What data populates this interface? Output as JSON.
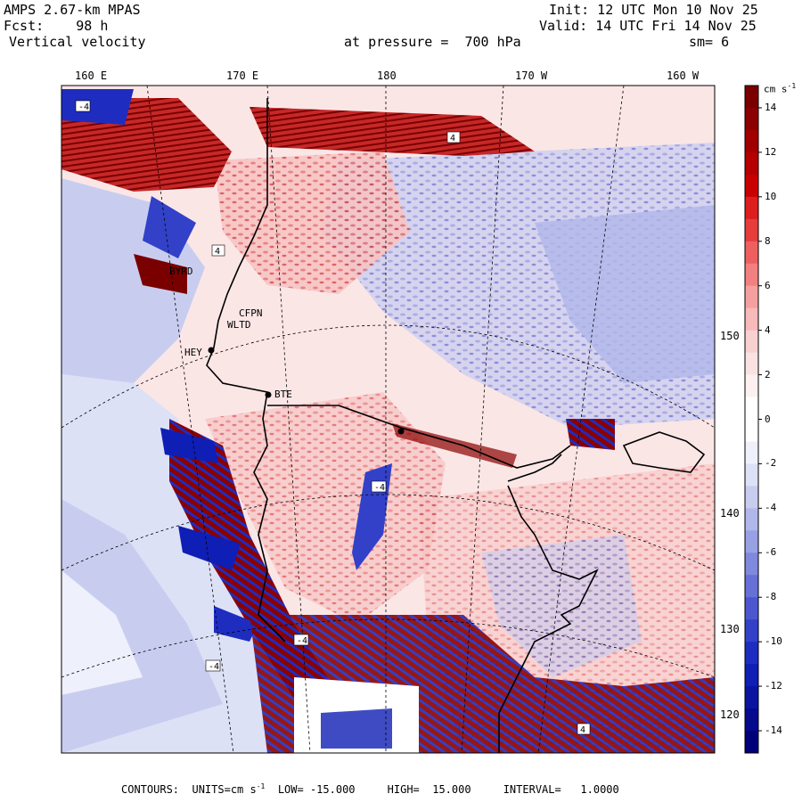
{
  "header": {
    "model": "AMPS 2.67-km MPAS",
    "forecast_label": "Fcst:",
    "forecast_hours": "98 h",
    "field": "Vertical velocity",
    "level_text": "at pressure =  700 hPa",
    "init": "Init: 12 UTC Mon 10 Nov 25",
    "valid": "Valid: 14 UTC Fri 14 Nov 25",
    "smoothing": "sm= 6"
  },
  "map": {
    "longitude_labels": [
      "160 E",
      "170 E",
      "180",
      "170 W",
      "160 W"
    ],
    "latitude_labels": [
      "150 W",
      "140 W",
      "130 W",
      "120 W"
    ],
    "station_labels": [
      "BYRD",
      "CFPN",
      "WLTD",
      "BTE",
      "HEY"
    ],
    "contour_highlight_values": [
      "-4",
      "4",
      "-4",
      "4",
      "-4",
      "4",
      "-4"
    ]
  },
  "colorbar": {
    "units_label": "cm s",
    "units_exp": "-1",
    "tick_labels": [
      "14",
      "12",
      "10",
      "8",
      "6",
      "4",
      "2",
      "0",
      "-2",
      "-4",
      "-6",
      "-8",
      "-10",
      "-12",
      "-14"
    ],
    "colors": [
      "#7a0000",
      "#8b0000",
      "#a00000",
      "#b40000",
      "#c80000",
      "#dc1e1e",
      "#e63c3c",
      "#ee6060",
      "#f28080",
      "#f5a0a0",
      "#f7b9b9",
      "#f9d0d0",
      "#fbe2e2",
      "#fdf0f0",
      "#ffffff",
      "#ffffff",
      "#eef0fb",
      "#dde1f6",
      "#c8cdf0",
      "#b0b7ea",
      "#98a1e4",
      "#7f89dd",
      "#6670d6",
      "#4c57cf",
      "#3241c8",
      "#1e2dc0",
      "#0f1eb4",
      "#0a14a0",
      "#050a8c",
      "#000078"
    ]
  },
  "footer": {
    "contours_label": "CONTOURS:",
    "units_text": "UNITS=cm s",
    "units_exp": "-1",
    "low_text": "LOW= -15.000",
    "high_text": "HIGH=  15.000",
    "interval_text": "INTERVAL=   1.0000"
  }
}
